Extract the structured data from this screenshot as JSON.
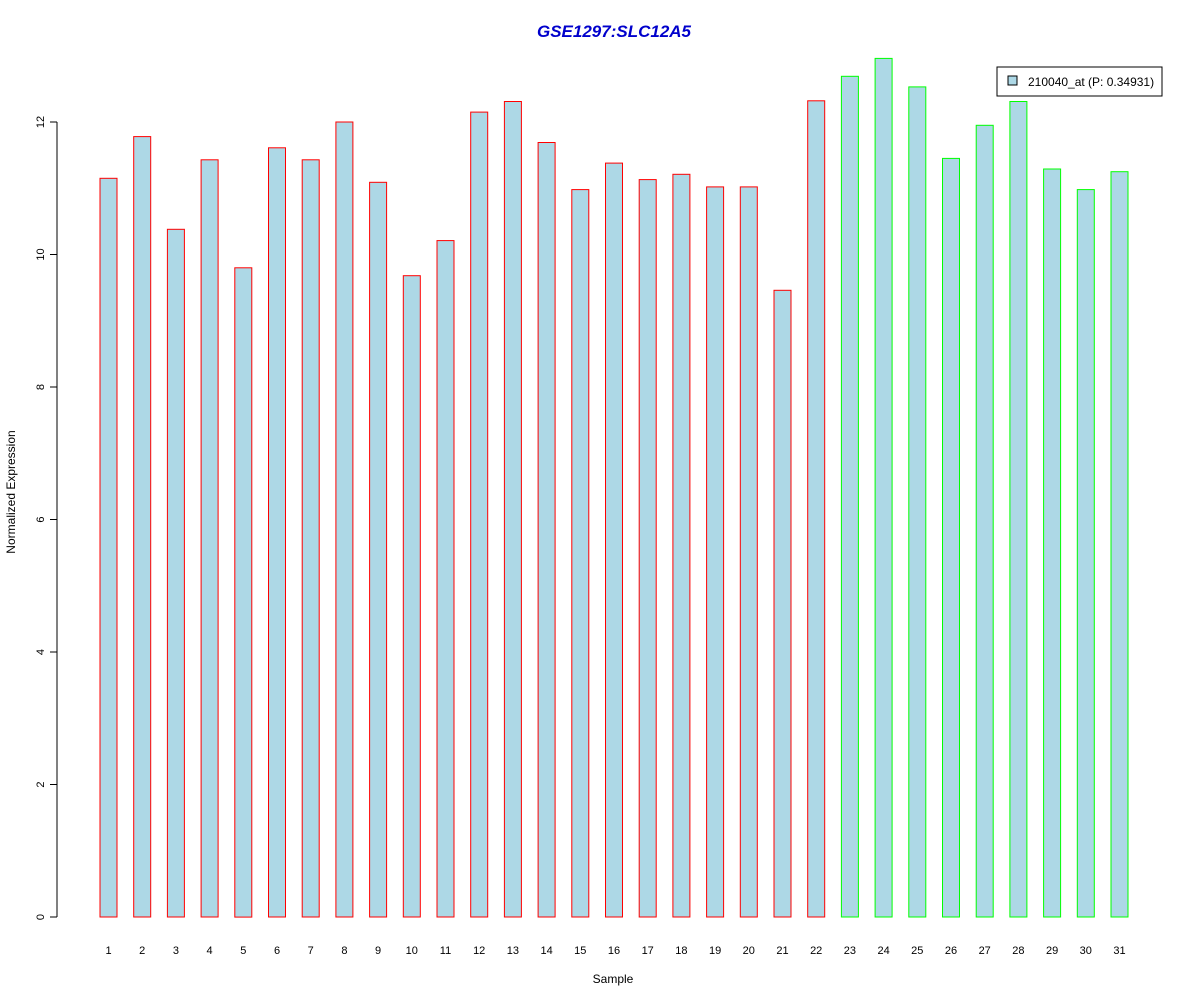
{
  "chart_data": {
    "type": "bar",
    "title": "GSE1297:SLC12A5",
    "xlabel": "Sample",
    "ylabel": "Normalized Expression",
    "ylim": [
      0,
      13
    ],
    "y_ticks": [
      0,
      2,
      4,
      6,
      8,
      10,
      12
    ],
    "grid": false,
    "legend_position": "top-right",
    "categories": [
      "1",
      "2",
      "3",
      "4",
      "5",
      "6",
      "7",
      "8",
      "9",
      "10",
      "11",
      "12",
      "13",
      "14",
      "15",
      "16",
      "17",
      "18",
      "19",
      "20",
      "21",
      "22",
      "23",
      "24",
      "25",
      "26",
      "27",
      "28",
      "29",
      "30",
      "31"
    ],
    "series": [
      {
        "name": "210040_at (P: 0.34931)",
        "values": [
          11.15,
          11.78,
          10.38,
          11.43,
          9.8,
          11.61,
          11.43,
          12.0,
          11.09,
          9.68,
          10.21,
          12.15,
          12.31,
          11.69,
          10.98,
          11.38,
          11.13,
          11.21,
          11.02,
          11.02,
          9.46,
          12.32,
          12.69,
          12.96,
          12.53,
          11.45,
          11.95,
          12.31,
          11.29,
          10.98,
          11.25
        ]
      }
    ],
    "bar_fill": "#add8e6",
    "group_border_colors": {
      "group1": "#ff0000",
      "group2": "#00ff00"
    },
    "bar_border_groups": [
      "group1",
      "group1",
      "group1",
      "group1",
      "group1",
      "group1",
      "group1",
      "group1",
      "group1",
      "group1",
      "group1",
      "group1",
      "group1",
      "group1",
      "group1",
      "group1",
      "group1",
      "group1",
      "group1",
      "group1",
      "group1",
      "group1",
      "group2",
      "group2",
      "group2",
      "group2",
      "group2",
      "group2",
      "group2",
      "group2",
      "group2"
    ],
    "title_color": "#0000cc"
  }
}
